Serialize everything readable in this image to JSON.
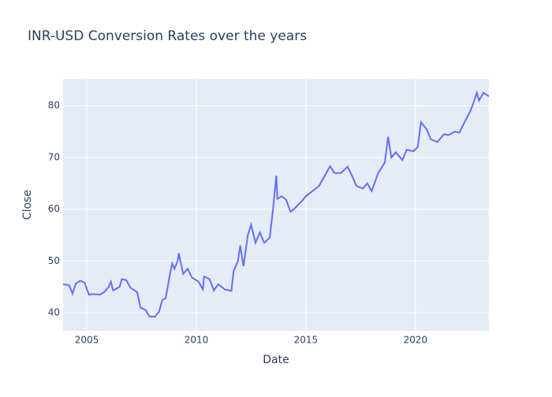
{
  "chart_data": {
    "type": "line",
    "title": "INR-USD Conversion Rates over the years",
    "x_label": "Date",
    "y_label": "Close",
    "x": [
      2003.92,
      2004.2,
      2004.35,
      2004.5,
      2004.7,
      2004.9,
      2005.1,
      2005.3,
      2005.6,
      2005.8,
      2006.0,
      2006.1,
      2006.2,
      2006.5,
      2006.6,
      2006.8,
      2007.0,
      2007.3,
      2007.45,
      2007.7,
      2007.85,
      2008.1,
      2008.3,
      2008.45,
      2008.6,
      2008.8,
      2008.9,
      2009.0,
      2009.15,
      2009.2,
      2009.4,
      2009.6,
      2009.8,
      2010.1,
      2010.3,
      2010.35,
      2010.6,
      2010.8,
      2011.0,
      2011.3,
      2011.6,
      2011.7,
      2011.9,
      2012.0,
      2012.15,
      2012.35,
      2012.5,
      2012.7,
      2012.9,
      2013.1,
      2013.35,
      2013.5,
      2013.65,
      2013.7,
      2013.9,
      2014.1,
      2014.3,
      2014.45,
      2014.8,
      2015.0,
      2015.3,
      2015.6,
      2015.8,
      2016.1,
      2016.3,
      2016.6,
      2016.9,
      2017.1,
      2017.3,
      2017.6,
      2017.8,
      2018.0,
      2018.3,
      2018.6,
      2018.75,
      2018.9,
      2019.1,
      2019.4,
      2019.6,
      2019.9,
      2020.1,
      2020.25,
      2020.5,
      2020.7,
      2021.0,
      2021.3,
      2021.5,
      2021.8,
      2022.0,
      2022.2,
      2022.45,
      2022.6,
      2022.8,
      2022.9,
      2023.1,
      2023.35
    ],
    "series": [
      {
        "name": "Close",
        "color": "#636efa",
        "values": [
          45.5,
          45.3,
          43.7,
          45.6,
          46.2,
          45.8,
          43.5,
          43.6,
          43.5,
          44.0,
          45.0,
          46.0,
          44.3,
          45.0,
          46.5,
          46.3,
          44.8,
          44.0,
          41.0,
          40.5,
          39.3,
          39.2,
          40.2,
          42.5,
          42.8,
          47.5,
          49.5,
          48.5,
          50.0,
          51.5,
          47.5,
          48.5,
          46.8,
          46.0,
          44.5,
          47.0,
          46.5,
          44.3,
          45.5,
          44.5,
          44.2,
          48.0,
          50.0,
          53.0,
          49.0,
          55.0,
          57.0,
          53.5,
          55.5,
          53.5,
          54.5,
          60.0,
          66.5,
          62.0,
          62.5,
          61.8,
          59.5,
          60.0,
          61.5,
          62.5,
          63.5,
          64.5,
          66.0,
          68.3,
          67.0,
          67.0,
          68.2,
          66.5,
          64.5,
          64.0,
          65.0,
          63.5,
          67.0,
          69.0,
          74.0,
          70.0,
          71.0,
          69.5,
          71.5,
          71.2,
          72.0,
          76.8,
          75.5,
          73.5,
          73.0,
          74.5,
          74.3,
          75.0,
          74.8,
          76.5,
          78.5,
          80.0,
          82.5,
          81.0,
          82.5,
          81.8
        ]
      }
    ],
    "xlim": [
      2003.92,
      2023.35
    ],
    "xticks": [
      2005,
      2010,
      2015,
      2020
    ],
    "ylim": [
      36.5,
      85.2
    ],
    "yticks": [
      40,
      50,
      60,
      70,
      80
    ],
    "grid": true
  }
}
